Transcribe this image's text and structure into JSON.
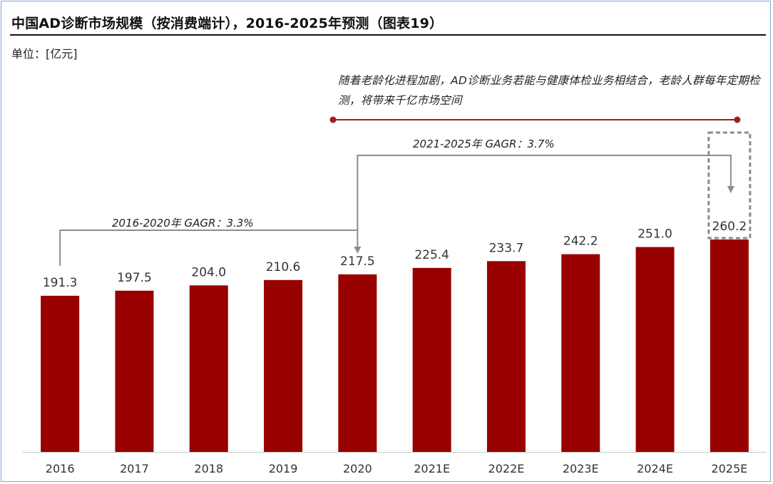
{
  "header": {
    "title": "中国AD诊断市场规模（按消费端计），2016-2025年预测（图表19）",
    "unit": "单位：[亿元]"
  },
  "annotation": {
    "text": "随着老龄化进程加剧，AD诊断业务若能与健康体检业务相结合，老龄人群每年定期检测，将带来千亿市场空间"
  },
  "cagr": {
    "first": "2016-2020年  GAGR：3.3%",
    "second": "2021-2025年  GAGR：3.7%"
  },
  "colors": {
    "bar": "#990000",
    "accent_line": "#a01d20",
    "connector": "#8c8c8c",
    "highlight_box": "#8c8c8c"
  },
  "chart_data": {
    "type": "bar",
    "title": "中国AD诊断市场规模（按消费端计），2016-2025年预测（图表19）",
    "ylabel": "单位：[亿元]",
    "categories": [
      "2016",
      "2017",
      "2018",
      "2019",
      "2020",
      "2021E",
      "2022E",
      "2023E",
      "2024E",
      "2025E"
    ],
    "values": [
      191.3,
      197.5,
      204.0,
      210.6,
      217.5,
      225.4,
      233.7,
      242.2,
      251.0,
      260.2
    ],
    "value_labels": [
      "191.3",
      "197.5",
      "204.0",
      "210.6",
      "217.5",
      "225.4",
      "233.7",
      "242.2",
      "251.0",
      "260.2"
    ],
    "grid": false,
    "legend": "none",
    "highlight_category": "2025E"
  }
}
